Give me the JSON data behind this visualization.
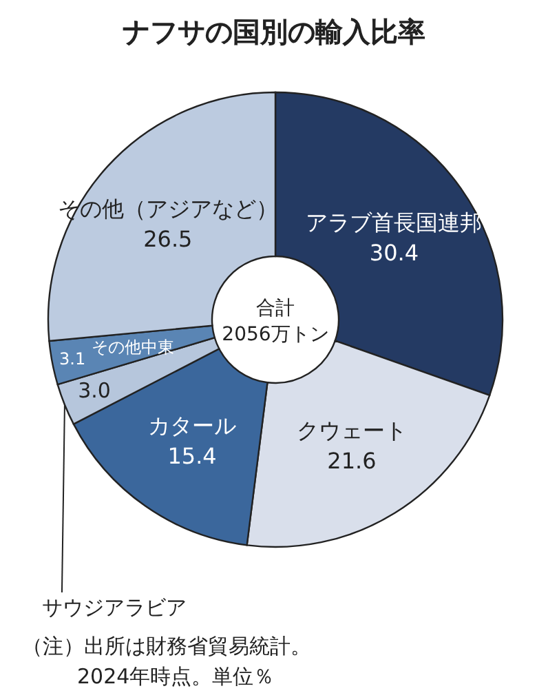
{
  "chart_data": {
    "type": "donut",
    "title": "ナフサの国別の輸入比率",
    "categories": [
      "アラブ首長国連邦",
      "クウェート",
      "カタール",
      "サウジアラビア",
      "その他中東",
      "その他（アジアなど）"
    ],
    "values": [
      30.4,
      21.6,
      15.4,
      3.0,
      3.1,
      26.5
    ],
    "colors": [
      "#243a63",
      "#d9dfeb",
      "#3b679c",
      "#b6c6dc",
      "#5a85b4",
      "#bccbe0"
    ],
    "value_labels": [
      "30.4",
      "21.6",
      "15.4",
      "3.0",
      "3.1",
      "26.5"
    ],
    "annotations": [
      "合計\n2056万トン",
      "（注）出所は財務省貿易統計。\n2024年時点。単位％"
    ]
  }
}
